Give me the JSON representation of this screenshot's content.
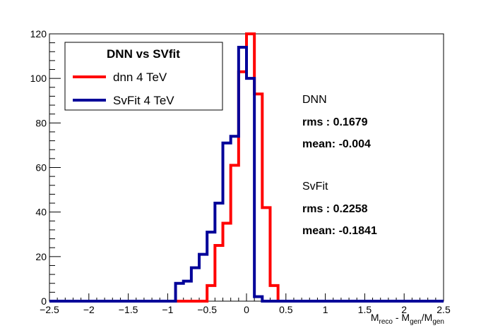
{
  "chart_data": {
    "type": "histogram",
    "title": "",
    "xlabel": {
      "parts": [
        {
          "text": "M",
          "sub": false
        },
        {
          "text": "reco",
          "sub": true
        },
        {
          "text": " - M",
          "sub": false
        },
        {
          "text": "gen",
          "sub": true
        },
        {
          "text": "/M",
          "sub": false
        },
        {
          "text": "gen",
          "sub": true
        }
      ]
    },
    "ylabel": "",
    "xlim": [
      -2.5,
      2.5
    ],
    "ylim": [
      0,
      120
    ],
    "x_ticks": [
      -2.5,
      -2,
      -1.5,
      -1,
      -0.5,
      0,
      0.5,
      1,
      1.5,
      2,
      2.5
    ],
    "x_tick_labels": [
      "−2.5",
      "−2",
      "−1.5",
      "−1",
      "−0.5",
      "0",
      "0.5",
      "1",
      "1.5",
      "2",
      "2.5"
    ],
    "y_ticks": [
      0,
      20,
      40,
      60,
      80,
      100,
      120
    ],
    "y_tick_labels": [
      "0",
      "20",
      "40",
      "60",
      "80",
      "100",
      "120"
    ],
    "bin_width": 0.1,
    "grid": false,
    "legend": {
      "position": "top-left",
      "title": "DNN vs SVfit"
    },
    "series": [
      {
        "name": "dnn 4 TeV",
        "color": "#ff0000",
        "bins": [
          {
            "x0": -2.5,
            "x1": -0.5,
            "y": 0
          },
          {
            "x0": -0.5,
            "x1": -0.4,
            "y": 7
          },
          {
            "x0": -0.4,
            "x1": -0.3,
            "y": 25
          },
          {
            "x0": -0.3,
            "x1": -0.2,
            "y": 35
          },
          {
            "x0": -0.2,
            "x1": -0.1,
            "y": 61
          },
          {
            "x0": -0.1,
            "x1": 0.0,
            "y": 103
          },
          {
            "x0": 0.0,
            "x1": 0.1,
            "y": 120
          },
          {
            "x0": 0.1,
            "x1": 0.2,
            "y": 93
          },
          {
            "x0": 0.2,
            "x1": 0.3,
            "y": 42
          },
          {
            "x0": 0.3,
            "x1": 0.4,
            "y": 7
          },
          {
            "x0": 0.4,
            "x1": 2.5,
            "y": 0
          }
        ]
      },
      {
        "name": "SvFit 4 TeV",
        "color": "#000099",
        "bins": [
          {
            "x0": -2.5,
            "x1": -0.9,
            "y": 0
          },
          {
            "x0": -0.9,
            "x1": -0.8,
            "y": 8
          },
          {
            "x0": -0.8,
            "x1": -0.7,
            "y": 9
          },
          {
            "x0": -0.7,
            "x1": -0.6,
            "y": 15
          },
          {
            "x0": -0.6,
            "x1": -0.5,
            "y": 21
          },
          {
            "x0": -0.5,
            "x1": -0.4,
            "y": 31
          },
          {
            "x0": -0.4,
            "x1": -0.3,
            "y": 44
          },
          {
            "x0": -0.3,
            "x1": -0.2,
            "y": 71
          },
          {
            "x0": -0.2,
            "x1": -0.1,
            "y": 74
          },
          {
            "x0": -0.1,
            "x1": 0.0,
            "y": 114
          },
          {
            "x0": 0.0,
            "x1": 0.1,
            "y": 100
          },
          {
            "x0": 0.1,
            "x1": 0.2,
            "y": 2
          },
          {
            "x0": 0.2,
            "x1": 2.5,
            "y": 0
          }
        ]
      }
    ],
    "annotations": [
      {
        "text": "DNN",
        "bold": false
      },
      {
        "text": "rms : 0.1679",
        "bold": true
      },
      {
        "text": "mean: -0.004",
        "bold": true
      },
      {
        "text": "SvFit",
        "bold": false
      },
      {
        "text": "rms : 0.2258",
        "bold": true
      },
      {
        "text": "mean: -0.1841",
        "bold": true
      }
    ]
  }
}
